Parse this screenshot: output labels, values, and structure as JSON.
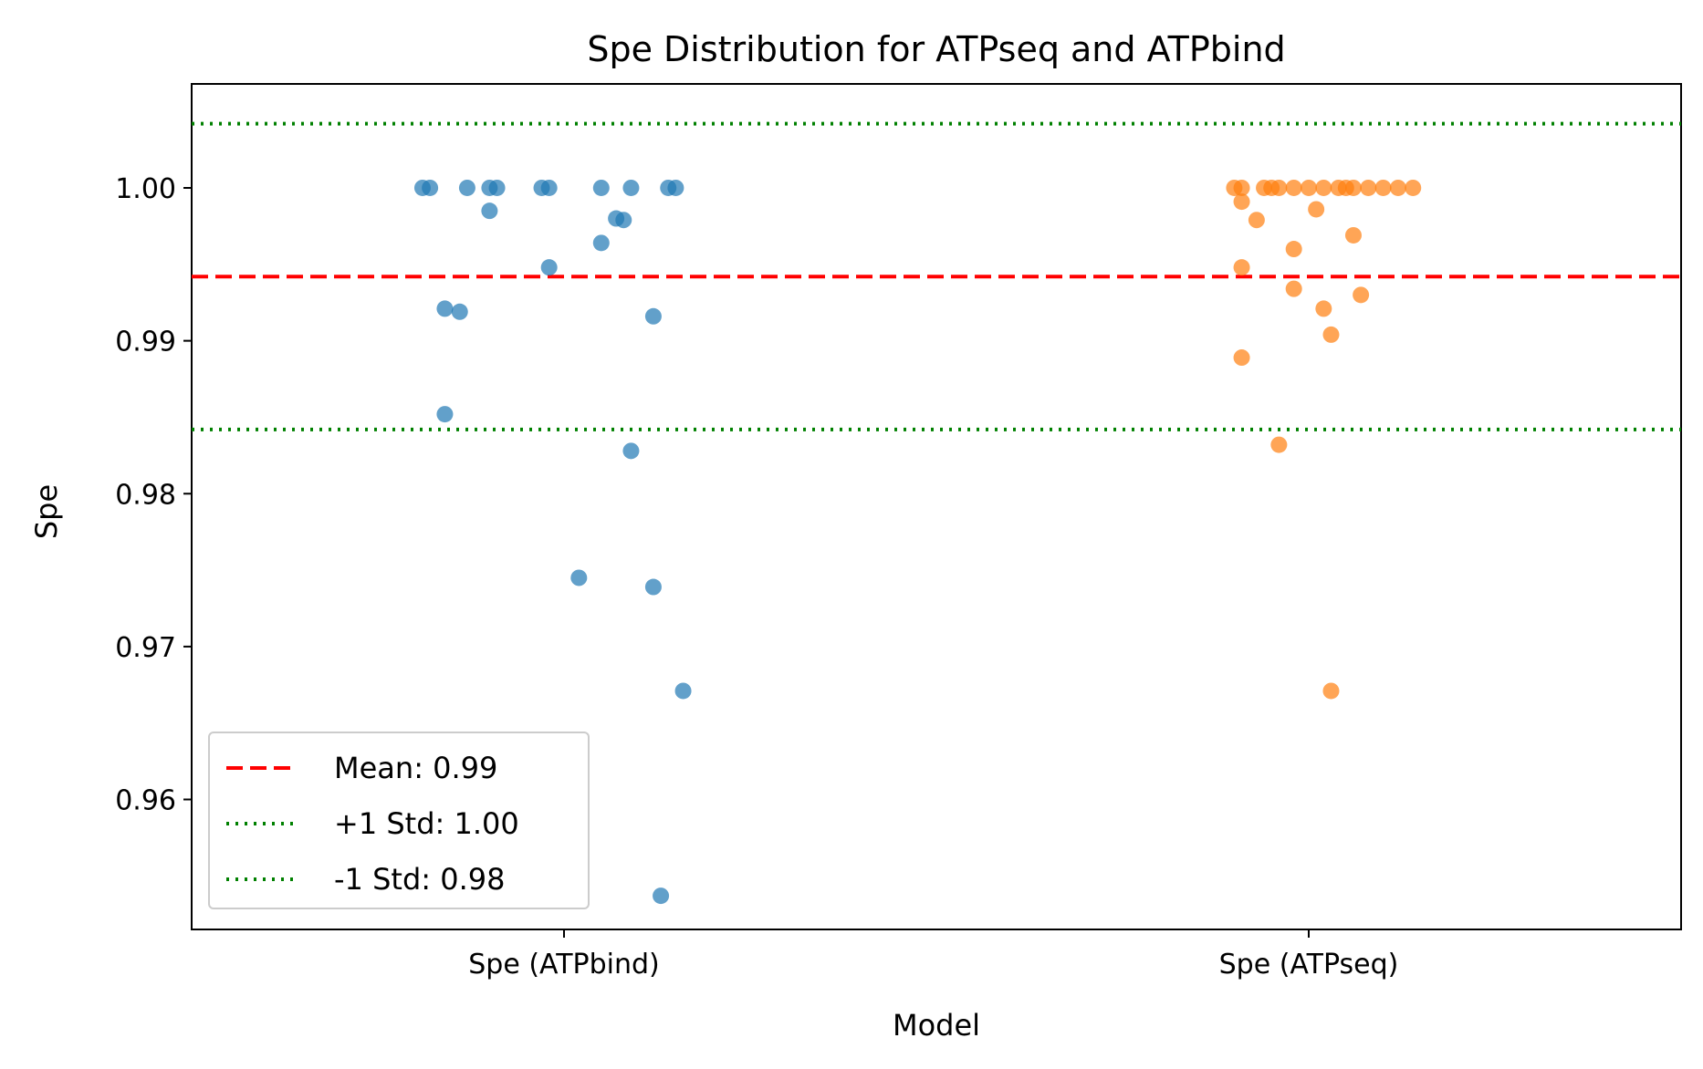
{
  "chart_data": {
    "type": "scatter",
    "title": "Spe Distribution for ATPseq and ATPbind",
    "xlabel": "Model",
    "ylabel": "Spe",
    "categories": [
      "Spe (ATPbind)",
      "Spe (ATPseq)"
    ],
    "ylim": [
      0.9515,
      1.0068
    ],
    "yticks": [
      0.96,
      0.97,
      0.98,
      0.99,
      1.0
    ],
    "ytick_labels": [
      "0.96",
      "0.97",
      "0.98",
      "0.99",
      "1.00"
    ],
    "grid": false,
    "series": [
      {
        "category": "Spe (ATPbind)",
        "color": "#1f77b4",
        "points": [
          {
            "j": -0.19,
            "y": 1.0
          },
          {
            "j": -0.18,
            "y": 1.0
          },
          {
            "j": -0.13,
            "y": 1.0
          },
          {
            "j": -0.1,
            "y": 1.0
          },
          {
            "j": -0.09,
            "y": 1.0
          },
          {
            "j": -0.03,
            "y": 1.0
          },
          {
            "j": -0.02,
            "y": 1.0
          },
          {
            "j": 0.05,
            "y": 1.0
          },
          {
            "j": 0.09,
            "y": 1.0
          },
          {
            "j": 0.14,
            "y": 1.0
          },
          {
            "j": 0.15,
            "y": 1.0
          },
          {
            "j": -0.1,
            "y": 0.9985
          },
          {
            "j": 0.07,
            "y": 0.998
          },
          {
            "j": 0.08,
            "y": 0.9979
          },
          {
            "j": 0.05,
            "y": 0.9964
          },
          {
            "j": -0.02,
            "y": 0.9948
          },
          {
            "j": -0.16,
            "y": 0.9921
          },
          {
            "j": -0.14,
            "y": 0.9919
          },
          {
            "j": 0.12,
            "y": 0.9916
          },
          {
            "j": -0.16,
            "y": 0.9852
          },
          {
            "j": 0.09,
            "y": 0.9828
          },
          {
            "j": 0.02,
            "y": 0.9745
          },
          {
            "j": 0.12,
            "y": 0.9739
          },
          {
            "j": 0.16,
            "y": 0.9671
          },
          {
            "j": 0.13,
            "y": 0.9537
          }
        ]
      },
      {
        "category": "Spe (ATPseq)",
        "color": "#ff7f0e",
        "points": [
          {
            "j": -0.1,
            "y": 1.0
          },
          {
            "j": -0.09,
            "y": 1.0
          },
          {
            "j": -0.06,
            "y": 1.0
          },
          {
            "j": -0.05,
            "y": 1.0
          },
          {
            "j": -0.04,
            "y": 1.0
          },
          {
            "j": -0.02,
            "y": 1.0
          },
          {
            "j": 0.0,
            "y": 1.0
          },
          {
            "j": 0.02,
            "y": 1.0
          },
          {
            "j": 0.04,
            "y": 1.0
          },
          {
            "j": 0.05,
            "y": 1.0
          },
          {
            "j": 0.06,
            "y": 1.0
          },
          {
            "j": 0.08,
            "y": 1.0
          },
          {
            "j": 0.1,
            "y": 1.0
          },
          {
            "j": 0.12,
            "y": 1.0
          },
          {
            "j": 0.14,
            "y": 1.0
          },
          {
            "j": -0.09,
            "y": 0.9991
          },
          {
            "j": 0.01,
            "y": 0.9986
          },
          {
            "j": -0.07,
            "y": 0.9979
          },
          {
            "j": 0.06,
            "y": 0.9969
          },
          {
            "j": -0.02,
            "y": 0.996
          },
          {
            "j": -0.09,
            "y": 0.9948
          },
          {
            "j": -0.02,
            "y": 0.9934
          },
          {
            "j": 0.07,
            "y": 0.993
          },
          {
            "j": 0.02,
            "y": 0.9921
          },
          {
            "j": 0.03,
            "y": 0.9904
          },
          {
            "j": -0.09,
            "y": 0.9889
          },
          {
            "j": -0.04,
            "y": 0.9832
          },
          {
            "j": 0.03,
            "y": 0.9671
          }
        ]
      }
    ],
    "reference_lines": [
      {
        "label": "Mean: 0.99",
        "y": 0.9942,
        "color": "#ff0000",
        "style": "dashed"
      },
      {
        "label": "+1 Std: 1.00",
        "y": 1.0042,
        "color": "#008000",
        "style": "dotted"
      },
      {
        "label": "-1 Std: 0.98",
        "y": 0.9842,
        "color": "#008000",
        "style": "dotted"
      }
    ],
    "legend": {
      "position": "lower-left",
      "entries": [
        "Mean: 0.99",
        "+1 Std: 1.00",
        "-1 Std: 0.98"
      ]
    }
  }
}
